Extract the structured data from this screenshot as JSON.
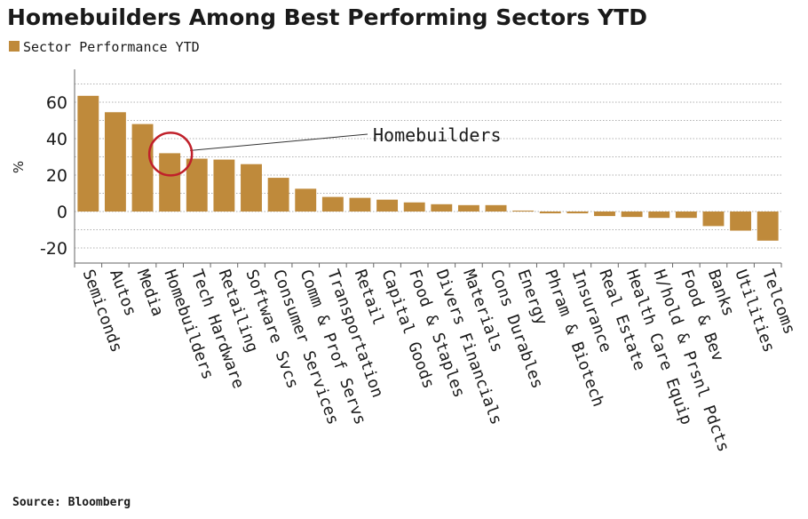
{
  "chart_data": {
    "type": "bar",
    "title": "Homebuilders Among Best Performing Sectors YTD",
    "legend": "Sector Performance YTD",
    "ylabel": "%",
    "xlabel": "",
    "ylim": [
      -25,
      77
    ],
    "yticks": [
      -20,
      0,
      20,
      40,
      60
    ],
    "grid": true,
    "categories": [
      "Semiconds",
      "Autos",
      "Media",
      "Homebuilders",
      "Tech Hardware",
      "Retailing",
      "Software Svcs",
      "Consumer Services",
      "Comm & Prof Servs",
      "Transportation",
      "Retail",
      "Capital Goods",
      "Food & Staples",
      "Divers Financials",
      "Materials",
      "Cons Durables",
      "Energy",
      "Phram & Biotech",
      "Insurance",
      "Real Estate",
      "Health Care Equip",
      "H/hold & Prsnl Pdcts",
      "Food & Bev",
      "Banks",
      "Utilities",
      "Telcoms"
    ],
    "values": [
      63.5,
      54.5,
      48,
      32,
      29,
      28.5,
      26,
      18.5,
      12.5,
      8,
      7.5,
      6.5,
      5,
      4,
      3.5,
      3.5,
      0.5,
      -1,
      -1,
      -2.5,
      -3,
      -3.5,
      -3.5,
      -8,
      -10.5,
      -16
    ],
    "annotations": [
      {
        "text": "Homebuilders",
        "category": "Homebuilders"
      }
    ],
    "colors": {
      "bar": "#bf8a3b",
      "grid": "#b0b0b0",
      "circle": "#c0202a",
      "axis": "#666666"
    }
  },
  "source": "Source: Bloomberg"
}
